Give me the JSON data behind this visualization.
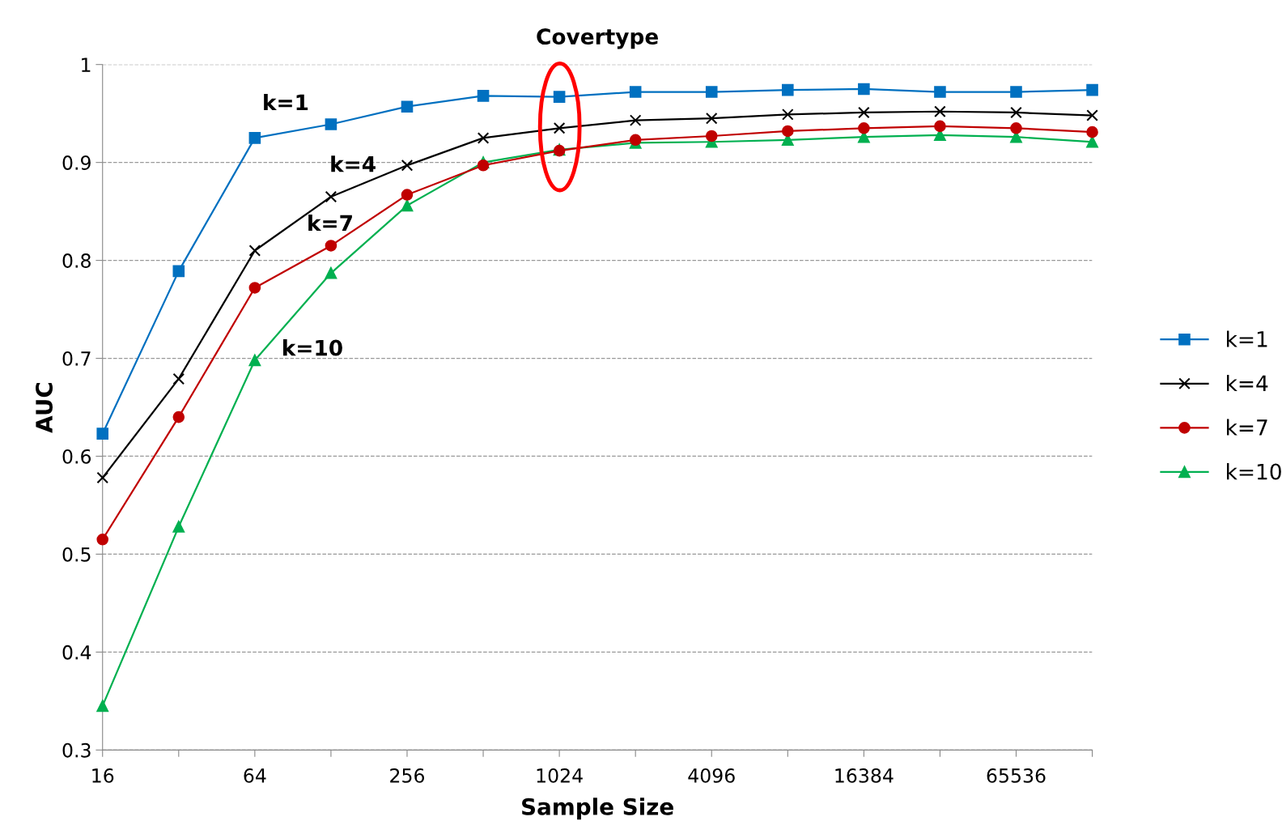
{
  "chart_data": {
    "type": "line",
    "title": "Covertype",
    "xlabel": "Sample Size",
    "ylabel": "AUC",
    "categories": [
      "16",
      null,
      "64",
      null,
      "256",
      null,
      "1024",
      null,
      "4096",
      null,
      "16384",
      null,
      "65536",
      null
    ],
    "series": [
      {
        "name": "k=1",
        "color": "#0070c0",
        "marker": "square",
        "values": [
          0.623,
          0.789,
          0.925,
          0.939,
          0.957,
          0.968,
          0.967,
          0.972,
          0.972,
          0.974,
          0.975,
          0.972,
          0.972,
          0.974
        ]
      },
      {
        "name": "k=4",
        "color": "#000000",
        "marker": "cross",
        "values": [
          0.578,
          0.679,
          0.81,
          0.865,
          0.897,
          0.925,
          0.935,
          0.943,
          0.945,
          0.949,
          0.951,
          0.952,
          0.951,
          0.948
        ]
      },
      {
        "name": "k=7",
        "color": "#c00000",
        "marker": "circle",
        "values": [
          0.515,
          0.64,
          0.772,
          0.815,
          0.867,
          0.897,
          0.912,
          0.923,
          0.927,
          0.932,
          0.935,
          0.937,
          0.935,
          0.931
        ]
      },
      {
        "name": "k=10",
        "color": "#00b050",
        "marker": "triangle",
        "values": [
          0.345,
          0.528,
          0.698,
          0.787,
          0.856,
          0.9,
          0.913,
          0.92,
          0.921,
          0.923,
          0.926,
          0.928,
          0.926,
          0.921
        ]
      }
    ],
    "annotations": [
      "k=1",
      "k=4",
      "k=7",
      "k=10"
    ],
    "ylim": [
      0.3,
      1
    ],
    "yticks": [
      0.3,
      0.4,
      0.5,
      0.6,
      0.7,
      0.8,
      0.9,
      1
    ],
    "grid": "y",
    "legend": "right",
    "line_style": "solid"
  }
}
